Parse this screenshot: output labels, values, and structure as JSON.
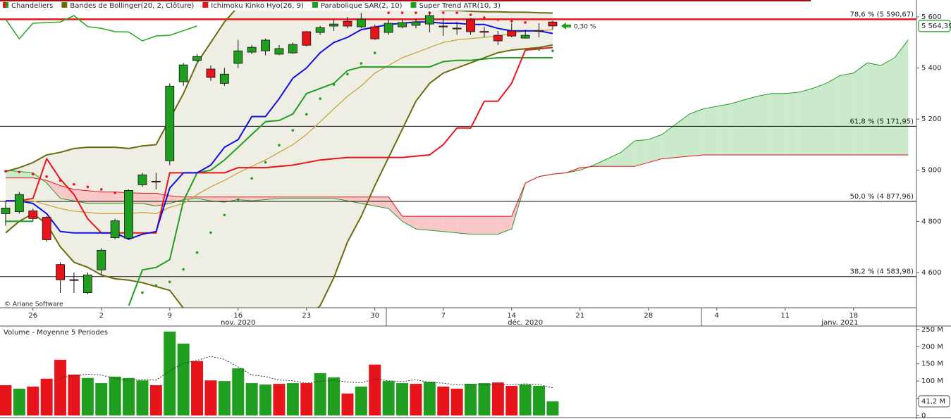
{
  "chart_data": [
    {
      "type": "candlestick",
      "watermark": "© Ariane Software",
      "xlim": [
        -0.41,
        66.6
      ],
      "ylim": [
        4462,
        5666
      ],
      "xticks": [
        {
          "value": 2,
          "label": "26"
        },
        {
          "value": 7,
          "label": "2"
        },
        {
          "value": 12,
          "label": "9"
        },
        {
          "value": 17,
          "label": "16"
        },
        {
          "value": 22,
          "label": "23"
        },
        {
          "value": 27,
          "label": "30"
        },
        {
          "value": 32,
          "label": "7"
        },
        {
          "value": 37,
          "label": "14"
        },
        {
          "value": 42,
          "label": "21"
        },
        {
          "value": 47,
          "label": "28"
        },
        {
          "value": 52,
          "label": "4"
        },
        {
          "value": 57,
          "label": "11"
        },
        {
          "value": 62,
          "label": "18"
        }
      ],
      "month_labels": [
        {
          "value": 17,
          "label": "nov. 2020"
        },
        {
          "value": 38,
          "label": "déc. 2020"
        },
        {
          "value": 61,
          "label": "janv. 2021"
        }
      ],
      "yticks": [
        {
          "value": 5600,
          "label": "5 600"
        },
        {
          "value": 5400,
          "label": "5 400"
        },
        {
          "value": 5200,
          "label": "5 200"
        },
        {
          "value": 5000,
          "label": "5 000"
        },
        {
          "value": 4800,
          "label": "4 800"
        },
        {
          "value": 4600,
          "label": "4 600"
        }
      ],
      "levels": [
        {
          "value": 5590.67,
          "label": "78,6 % (5 590,67)",
          "color": "#e8141c"
        },
        {
          "value": 5171.95,
          "label": "61,8 % (5 171,95)",
          "color": "#111111"
        },
        {
          "value": 4877.96,
          "label": "50,0 % (4 877,96)",
          "color": "#111111"
        },
        {
          "value": 4583.98,
          "label": "38,2 % (4 583,98)",
          "color": "#111111"
        }
      ],
      "last_price_label": "5 564,39",
      "change_label": "0,30 %",
      "candles": {
        "name": "Chandeliers",
        "up_color": "#1f9e1f",
        "down_color": "#e8141c",
        "open": [
          4830,
          4838,
          4841,
          4816,
          4631,
          4572,
          4521,
          4610,
          4736,
          4734,
          4943,
          4957,
          5037,
          5346,
          5429,
          5396,
          5340,
          5418,
          5462,
          5467,
          5454,
          5459,
          5542,
          5539,
          5564,
          5583,
          5561,
          5561,
          5539,
          5561,
          5567,
          5572,
          5564,
          5556,
          5589,
          5543,
          5528,
          5545,
          5517,
          5547,
          5580
        ],
        "high": [
          4880,
          4915,
          4850,
          4820,
          4640,
          4600,
          4600,
          4695,
          4810,
          4925,
          4990,
          4990,
          5340,
          5420,
          5455,
          5410,
          5400,
          5510,
          5490,
          5515,
          5490,
          5500,
          5545,
          5565,
          5590,
          5600,
          5615,
          5570,
          5590,
          5590,
          5590,
          5620,
          5595,
          5580,
          5595,
          5560,
          5545,
          5575,
          5550,
          5575,
          5585
        ],
        "low": [
          4783,
          4830,
          4800,
          4720,
          4520,
          4520,
          4515,
          4590,
          4730,
          4730,
          4935,
          4925,
          5020,
          5330,
          5425,
          5350,
          5330,
          5400,
          5455,
          5450,
          5450,
          5455,
          5485,
          5530,
          5545,
          5555,
          5555,
          5510,
          5530,
          5555,
          5555,
          5540,
          5525,
          5530,
          5530,
          5520,
          5490,
          5520,
          5515,
          5520,
          5550
        ],
        "close": [
          4852,
          4905,
          4811,
          4728,
          4571,
          4570,
          4590,
          4687,
          4802,
          4921,
          4982,
          4955,
          5329,
          5412,
          5445,
          5363,
          5376,
          5467,
          5481,
          5509,
          5476,
          5492,
          5489,
          5558,
          5572,
          5564,
          5591,
          5514,
          5575,
          5578,
          5580,
          5605,
          5562,
          5555,
          5542,
          5541,
          5506,
          5525,
          5528,
          5546,
          5564.39
        ]
      },
      "indicators": [
        {
          "name": "Bandes de Bollinger(20, 2, Clôture)",
          "color": "#6b6b10",
          "middle_color": "#c8a030",
          "fill": "#efeee4",
          "upper": [
            4995,
            5010,
            5030,
            5060,
            5070,
            5085,
            5090,
            5090,
            5090,
            5085,
            5095,
            5100,
            5200,
            5300,
            5420,
            5500,
            5580,
            5640,
            5690,
            5710,
            5720,
            5725,
            5725,
            5720,
            5715,
            5700,
            5690,
            5680,
            5665,
            5650,
            5640,
            5630,
            5625,
            5625,
            5622,
            5620,
            5620,
            5618,
            5618,
            5616,
            5615
          ],
          "middle": [
            4880,
            4880,
            4880,
            4865,
            4850,
            4840,
            4835,
            4830,
            4830,
            4830,
            4835,
            4830,
            4855,
            4870,
            4905,
            4935,
            4960,
            4990,
            5015,
            5040,
            5070,
            5100,
            5140,
            5190,
            5240,
            5290,
            5330,
            5380,
            5410,
            5440,
            5460,
            5480,
            5500,
            5510,
            5515,
            5520,
            5525,
            5535,
            5545,
            5545,
            5550
          ],
          "lower": [
            4755,
            4800,
            4830,
            4790,
            4700,
            4640,
            4620,
            4590,
            4575,
            4570,
            4560,
            4545,
            4530,
            4460,
            4400,
            4360,
            4340,
            4330,
            4330,
            4335,
            4350,
            4380,
            4420,
            4470,
            4580,
            4720,
            4820,
            4940,
            5050,
            5160,
            5270,
            5340,
            5380,
            5400,
            5420,
            5440,
            5460,
            5470,
            5475,
            5480,
            5490
          ]
        },
        {
          "name": "Ichimoku Kinko Hyo(26, 9)",
          "color": "#e8141c",
          "tenkan_color": "#1010e0",
          "kijun_color": "#e8141c",
          "span_a_color": "#2a9a2a",
          "span_b_color": "#e8141c",
          "chikou_color": "#22aa22",
          "fill_up": "#cbe9cb",
          "fill_down": "#f8c8c8",
          "tenkan": [
            4880,
            4880,
            4870,
            4830,
            4760,
            4755,
            4755,
            4755,
            4755,
            4730,
            4750,
            4760,
            4930,
            4990,
            4990,
            5020,
            5090,
            5120,
            5210,
            5210,
            5280,
            5360,
            5400,
            5460,
            5500,
            5520,
            5550,
            5560,
            5570,
            5575,
            5580,
            5580,
            5575,
            5575,
            5570,
            5570,
            5555,
            5545,
            5545,
            5545,
            5535
          ],
          "kijun": [
            4880,
            4880,
            4890,
            5045,
            4965,
            4905,
            4810,
            4755,
            4755,
            4755,
            4755,
            4755,
            4990,
            4990,
            4990,
            4990,
            4990,
            5010,
            5010,
            5010,
            5015,
            5020,
            5030,
            5040,
            5045,
            5050,
            5050,
            5050,
            5050,
            5050,
            5055,
            5060,
            5100,
            5165,
            5165,
            5270,
            5270,
            5340,
            5470,
            5475,
            5480
          ],
          "span_a": [
            5000,
            4995,
            4990,
            4950,
            4890,
            4880,
            4870,
            4870,
            4870,
            4870,
            4870,
            4860,
            4870,
            4885,
            4890,
            4880,
            4875,
            4885,
            4880,
            4885,
            4890,
            4890,
            4890,
            4890,
            4890,
            4880,
            4870,
            4860,
            4850,
            4800,
            4770,
            4765,
            4760,
            4755,
            4750,
            4750,
            4750,
            4770,
            4950,
            4975,
            4985,
            4990,
            5000,
            5020,
            5045,
            5070,
            5115,
            5120,
            5140,
            5180,
            5220,
            5240,
            5250,
            5260,
            5275,
            5290,
            5300,
            5300,
            5305,
            5320,
            5340,
            5370,
            5380,
            5420,
            5410,
            5440,
            5510
          ],
          "span_b": [
            4970,
            4970,
            4970,
            4960,
            4940,
            4925,
            4920,
            4915,
            4915,
            4912,
            4910,
            4910,
            4900,
            4895,
            4895,
            4895,
            4895,
            4895,
            4895,
            4895,
            4895,
            4895,
            4895,
            4895,
            4895,
            4895,
            4895,
            4895,
            4895,
            4820,
            4820,
            4820,
            4820,
            4820,
            4820,
            4820,
            4820,
            4820,
            4950,
            4975,
            4985,
            4990,
            5010,
            5015,
            5015,
            5015,
            5015,
            5030,
            5045,
            5050,
            5055,
            5060,
            5060,
            5060,
            5060,
            5060,
            5060,
            5060,
            5060,
            5060,
            5060,
            5060,
            5060,
            5060,
            5060,
            5060,
            5060
          ]
        },
        {
          "name": "Parabolique SAR(2, 10)",
          "color": "#1f9e1f",
          "above_color": "#e8141c",
          "below_color": "#1f9e1f",
          "values": [
            4996,
            4993,
            4985,
            4975,
            4960,
            4945,
            4935,
            4925,
            4912,
            4900,
            4521,
            4549,
            4563,
            4612,
            4678,
            4756,
            4825,
            4885,
            4968,
            5031,
            5098,
            5156,
            5219,
            5280,
            5335,
            5376,
            5418,
            5459,
            5616,
            5616,
            5616,
            5616,
            5616,
            5616,
            5608,
            5597,
            5589,
            5583,
            5578,
            5473,
            5467
          ]
        },
        {
          "name": "Super Trend ATR(10, 3)",
          "color": "#1f9e1f",
          "values": [
            4800,
            4800,
            4800,
            null,
            null,
            null,
            null,
            null,
            null,
            4470,
            4610,
            4620,
            4650,
            4880,
            4990,
            5000,
            5040,
            5090,
            5140,
            5190,
            5195,
            5220,
            5300,
            5320,
            5340,
            5390,
            5404,
            5404,
            5404,
            5404,
            5404,
            5404,
            5425,
            5430,
            5430,
            5435,
            5440,
            5440,
            5440,
            5440,
            5440
          ]
        }
      ]
    },
    {
      "type": "bar",
      "title": "Volume  - Moyenne 5 Periodes",
      "ylim": [
        0,
        260
      ],
      "yticks": [
        {
          "value": 250,
          "label": "250 M"
        },
        {
          "value": 200,
          "label": "200 M"
        },
        {
          "value": 150,
          "label": "150 M"
        },
        {
          "value": 100,
          "label": "100 M"
        },
        {
          "value": 50,
          "label": "50 M"
        },
        0
      ],
      "last_label": "41,2 M",
      "values": [
        88,
        78,
        84,
        107,
        162,
        119,
        109,
        94,
        113,
        109,
        102,
        88,
        244,
        209,
        158,
        102,
        100,
        137,
        94,
        90,
        92,
        94,
        94,
        123,
        111,
        64,
        84,
        148,
        100,
        94,
        92,
        98,
        84,
        78,
        92,
        94,
        96,
        86,
        90,
        86,
        41.2
      ],
      "colors": [
        "#e8141c",
        "#1f9e1f",
        "#e8141c",
        "#e8141c",
        "#e8141c",
        "#e8141c",
        "#1f9e1f",
        "#1f9e1f",
        "#1f9e1f",
        "#1f9e1f",
        "#1f9e1f",
        "#e8141c",
        "#1f9e1f",
        "#1f9e1f",
        "#e8141c",
        "#e8141c",
        "#1f9e1f",
        "#1f9e1f",
        "#1f9e1f",
        "#1f9e1f",
        "#e8141c",
        "#1f9e1f",
        "#e8141c",
        "#1f9e1f",
        "#1f9e1f",
        "#e8141c",
        "#1f9e1f",
        "#e8141c",
        "#1f9e1f",
        "#1f9e1f",
        "#e8141c",
        "#1f9e1f",
        "#e8141c",
        "#e8141c",
        "#1f9e1f",
        "#1f9e1f",
        "#e8141c",
        "#e8141c",
        "#1f9e1f",
        "#1f9e1f",
        "#1f9e1f"
      ],
      "average": {
        "color": "#333333",
        "values": [
          null,
          null,
          null,
          null,
          110,
          115,
          120,
          118,
          107,
          102,
          105,
          103,
          130,
          152,
          160,
          172,
          163,
          141,
          118,
          113,
          103,
          101,
          94,
          99,
          103,
          97,
          95,
          106,
          101,
          98,
          104,
          96,
          94,
          89,
          89,
          89,
          90,
          89,
          92,
          90,
          80
        ]
      }
    }
  ]
}
